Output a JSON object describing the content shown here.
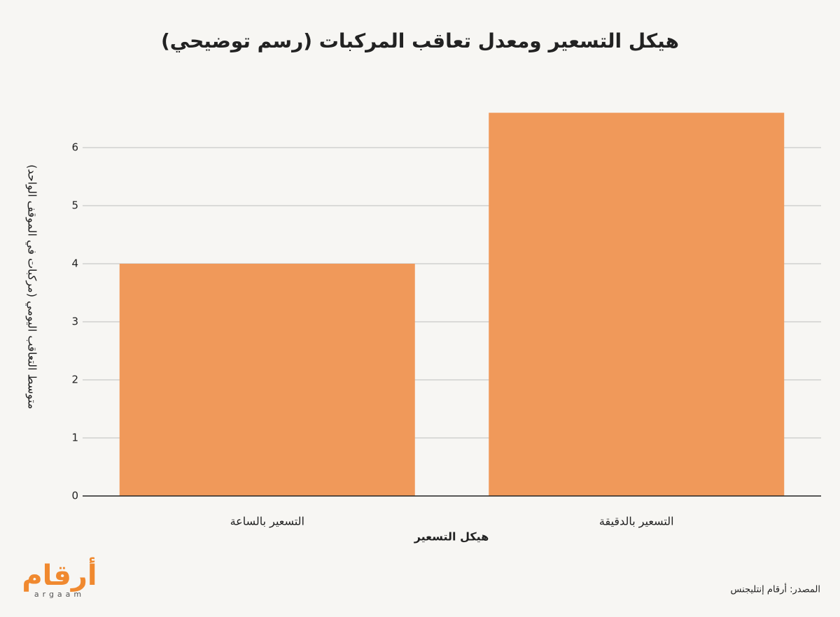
{
  "chart_data": {
    "type": "bar",
    "title": "هيكل التسعير ومعدل تعاقب المركبات (رسم توضيحي)",
    "x_label": "هيكل التسعير",
    "y_label": "متوسط التعاقب اليومي (مركبات في الموقف الواحد)",
    "categories": [
      "التسعير بالساعة",
      "التسعير بالدقيقة"
    ],
    "values": [
      4,
      6.6
    ],
    "color": "#f0995a",
    "ylim": [
      0,
      7
    ],
    "yticks": [
      0,
      1,
      2,
      3,
      4,
      5,
      6
    ],
    "grid": true
  },
  "footer": {
    "source": "المصدر: أرقام إنتليجنس",
    "logo": "أرقام",
    "logo_latin": "argaam"
  }
}
